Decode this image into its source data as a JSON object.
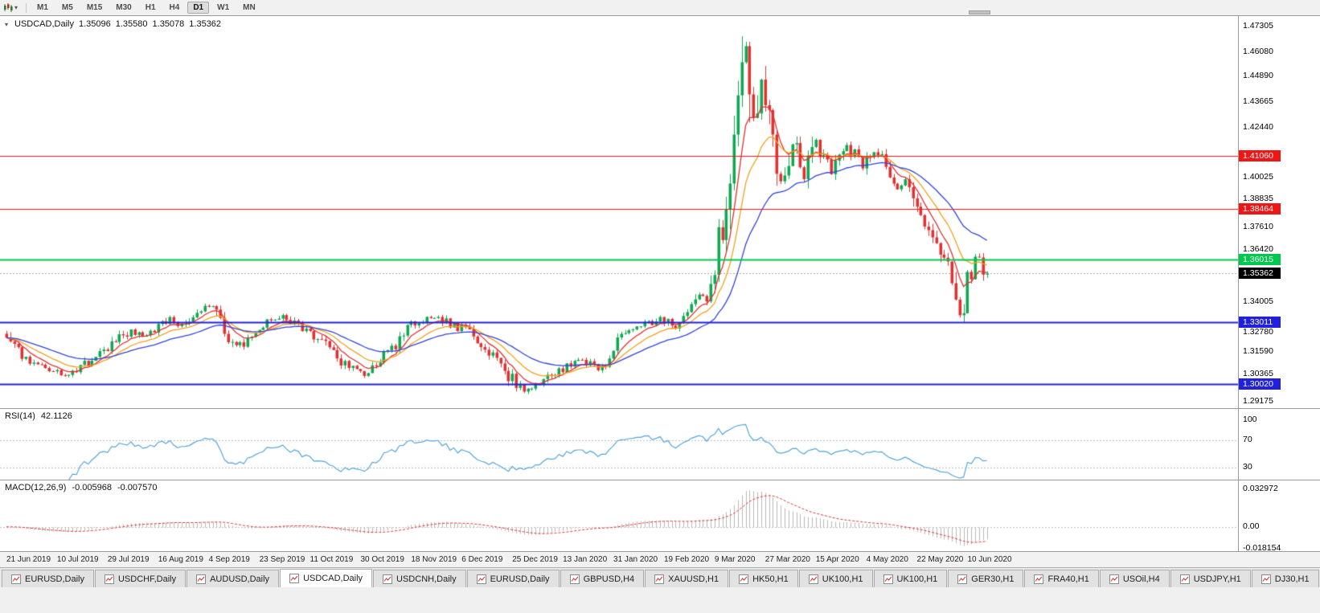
{
  "toolbar": {
    "timeframes": [
      "M1",
      "M5",
      "M15",
      "M30",
      "H1",
      "H4",
      "D1",
      "W1",
      "MN"
    ],
    "active_timeframe": "D1"
  },
  "chart": {
    "symbol": "USDCAD,Daily",
    "open": "1.35096",
    "high": "1.35580",
    "low": "1.35078",
    "close": "1.35362",
    "axis_ticks": [
      "1.47305",
      "1.46080",
      "1.44890",
      "1.43665",
      "1.42440",
      "1.40025",
      "1.38835",
      "1.37610",
      "1.36420",
      "1.34005",
      "1.32780",
      "1.31590",
      "1.30365",
      "1.29175"
    ],
    "hlines": [
      {
        "label": "1.41060",
        "price": 1.4106,
        "color": "#f01616",
        "width": 1
      },
      {
        "label": "1.38464",
        "price": 1.38464,
        "color": "#f01616",
        "width": 1
      },
      {
        "label": "1.36015",
        "price": 1.36015,
        "color": "#00c84e",
        "width": 2
      },
      {
        "label": "1.33011",
        "price": 1.33011,
        "color": "#2020dd",
        "width": 2
      },
      {
        "label": "1.30020",
        "price": 1.3002,
        "color": "#2020dd",
        "width": 2
      }
    ],
    "current_price": {
      "label": "1.35362",
      "price": 1.35362,
      "badge_color": "#000000",
      "line_color": "#a8a8a8"
    },
    "dates": [
      "21 Jun 2019",
      "10 Jul 2019",
      "29 Jul 2019",
      "16 Aug 2019",
      "4 Sep 2019",
      "23 Sep 2019",
      "11 Oct 2019",
      "30 Oct 2019",
      "18 Nov 2019",
      "6 Dec 2019",
      "25 Dec 2019",
      "13 Jan 2020",
      "31 Jan 2020",
      "19 Feb 2020",
      "9 Mar 2020",
      "27 Mar 2020",
      "15 Apr 2020",
      "4 May 2020",
      "22 May 2020",
      "10 Jun 2020"
    ]
  },
  "rsi": {
    "name": "RSI(14)",
    "value": "42.1126",
    "line_color": "#56a5d8",
    "levels": [
      {
        "label": "100",
        "value": 100
      },
      {
        "label": "70",
        "value": 70
      },
      {
        "label": "30",
        "value": 30
      }
    ]
  },
  "macd": {
    "name": "MACD(12,26,9)",
    "value_main": "-0.005968",
    "value_signal": "-0.007570",
    "histogram_color": "#b9b9b9",
    "signal_color": "#e03030",
    "levels": [
      {
        "label": "0.032972",
        "value": 0.032972
      },
      {
        "label": "0.00",
        "value": 0
      },
      {
        "label": "-0.018154",
        "value": -0.018154
      }
    ]
  },
  "tabs": [
    {
      "label": "EURUSD,Daily"
    },
    {
      "label": "USDCHF,Daily"
    },
    {
      "label": "AUDUSD,Daily"
    },
    {
      "label": "USDCAD,Daily",
      "active": true
    },
    {
      "label": "USDCNH,Daily"
    },
    {
      "label": "EURUSD,Daily"
    },
    {
      "label": "GBPUSD,H4"
    },
    {
      "label": "XAUUSD,H1"
    },
    {
      "label": "HK50,H1"
    },
    {
      "label": "UK100,H1"
    },
    {
      "label": "UK100,H1"
    },
    {
      "label": "GER30,H1"
    },
    {
      "label": "FRA40,H1"
    },
    {
      "label": "USOil,H4"
    },
    {
      "label": "USDJPY,H1"
    },
    {
      "label": "DJ30,H1"
    }
  ],
  "chart_data": {
    "type": "candlestick",
    "symbol": "USDCAD",
    "timeframe": "Daily",
    "x_range": [
      "21 Jun 2019",
      "19 Jun 2020"
    ],
    "price_min": 1.2885,
    "price_max": 1.478,
    "candle_count": 253,
    "last_close": 1.35362,
    "up_color": "#0fa852",
    "down_color": "#e03232",
    "keypoints": [
      [
        0,
        1.3245
      ],
      [
        3,
        1.3165
      ],
      [
        6,
        1.311
      ],
      [
        9,
        1.3078
      ],
      [
        13,
        1.3058
      ],
      [
        16,
        1.3045
      ],
      [
        19,
        1.3082
      ],
      [
        22,
        1.3125
      ],
      [
        26,
        1.3165
      ],
      [
        29,
        1.322
      ],
      [
        32,
        1.3258
      ],
      [
        35,
        1.3232
      ],
      [
        39,
        1.3272
      ],
      [
        42,
        1.3312
      ],
      [
        45,
        1.329
      ],
      [
        48,
        1.333
      ],
      [
        51,
        1.3365
      ],
      [
        53,
        1.3378
      ],
      [
        55,
        1.33
      ],
      [
        57,
        1.3235
      ],
      [
        59,
        1.318
      ],
      [
        61,
        1.3195
      ],
      [
        63,
        1.324
      ],
      [
        65,
        1.3282
      ],
      [
        68,
        1.3312
      ],
      [
        71,
        1.333
      ],
      [
        74,
        1.3292
      ],
      [
        78,
        1.3252
      ],
      [
        81,
        1.3205
      ],
      [
        84,
        1.3145
      ],
      [
        87,
        1.3095
      ],
      [
        90,
        1.3062
      ],
      [
        92,
        1.3052
      ],
      [
        94,
        1.3085
      ],
      [
        97,
        1.3135
      ],
      [
        100,
        1.3185
      ],
      [
        102,
        1.3235
      ],
      [
        104,
        1.3282
      ],
      [
        107,
        1.3312
      ],
      [
        110,
        1.3332
      ],
      [
        113,
        1.3302
      ],
      [
        116,
        1.3265
      ],
      [
        118,
        1.3282
      ],
      [
        121,
        1.3222
      ],
      [
        124,
        1.3162
      ],
      [
        127,
        1.3102
      ],
      [
        129,
        1.3048
      ],
      [
        131,
        1.2992
      ],
      [
        133,
        1.2962
      ],
      [
        135,
        1.2978
      ],
      [
        138,
        1.3012
      ],
      [
        141,
        1.3052
      ],
      [
        144,
        1.3088
      ],
      [
        147,
        1.3112
      ],
      [
        150,
        1.3102
      ],
      [
        152,
        1.3065
      ],
      [
        154,
        1.3092
      ],
      [
        156,
        1.3162
      ],
      [
        158,
        1.3222
      ],
      [
        160,
        1.3252
      ],
      [
        163,
        1.3282
      ],
      [
        166,
        1.3302
      ],
      [
        168,
        1.3322
      ],
      [
        170,
        1.3302
      ],
      [
        172,
        1.3262
      ],
      [
        174,
        1.3302
      ],
      [
        176,
        1.3362
      ],
      [
        178,
        1.3422
      ],
      [
        180,
        1.3392
      ],
      [
        182,
        1.3525
      ],
      [
        183,
        1.3705
      ],
      [
        184,
        1.3662
      ],
      [
        185,
        1.3782
      ],
      [
        186,
        1.3905
      ],
      [
        187,
        1.4082
      ],
      [
        188,
        1.4285
      ],
      [
        189,
        1.4505
      ],
      [
        190,
        1.4642
      ],
      [
        191,
        1.4455
      ],
      [
        192,
        1.4252
      ],
      [
        193,
        1.4352
      ],
      [
        194,
        1.4482
      ],
      [
        195,
        1.4422
      ],
      [
        196,
        1.4302
      ],
      [
        197,
        1.4152
      ],
      [
        198,
        1.4052
      ],
      [
        199,
        1.3982
      ],
      [
        200,
        1.4022
      ],
      [
        201,
        1.4102
      ],
      [
        202,
        1.4162
      ],
      [
        203,
        1.4112
      ],
      [
        204,
        1.4042
      ],
      [
        205,
        1.3992
      ],
      [
        206,
        1.4062
      ],
      [
        207,
        1.4132
      ],
      [
        208,
        1.4182
      ],
      [
        210,
        1.4092
      ],
      [
        212,
        1.4022
      ],
      [
        214,
        1.4082
      ],
      [
        216,
        1.4152
      ],
      [
        218,
        1.4102
      ],
      [
        220,
        1.4032
      ],
      [
        221,
        1.4072
      ],
      [
        223,
        1.4122
      ],
      [
        225,
        1.4082
      ],
      [
        227,
        1.3992
      ],
      [
        229,
        1.3942
      ],
      [
        231,
        1.3982
      ],
      [
        233,
        1.3902
      ],
      [
        234,
        1.3852
      ],
      [
        236,
        1.3782
      ],
      [
        238,
        1.3722
      ],
      [
        240,
        1.3622
      ],
      [
        242,
        1.3562
      ],
      [
        243,
        1.3482
      ],
      [
        244,
        1.3392
      ],
      [
        245,
        1.3332
      ],
      [
        246,
        1.3402
      ],
      [
        247,
        1.3482
      ],
      [
        248,
        1.3542
      ],
      [
        249,
        1.3592
      ],
      [
        250,
        1.3608
      ],
      [
        251,
        1.3562
      ],
      [
        252,
        1.35362
      ]
    ],
    "moving_averages": [
      {
        "period": 7,
        "color": "#e03030"
      },
      {
        "period": 14,
        "color": "#efa21a"
      },
      {
        "period": 30,
        "color": "#3344d8"
      }
    ]
  }
}
